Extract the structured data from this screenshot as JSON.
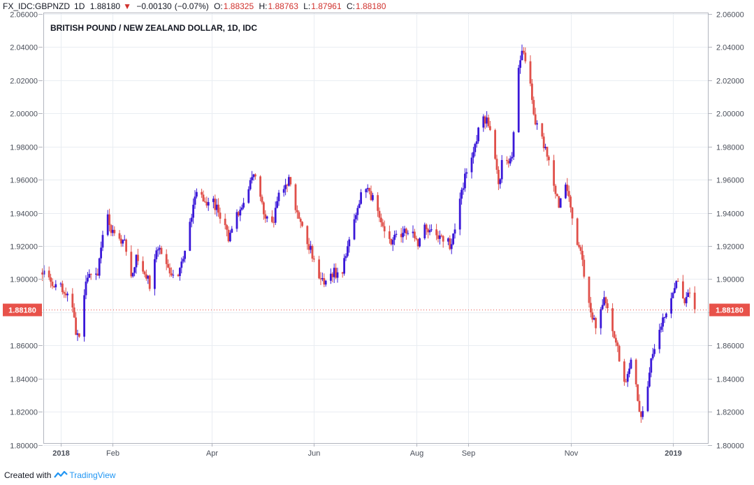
{
  "header": {
    "symbol": "FX_IDC:GBPNZD",
    "timeframe": "1D",
    "last": "1.88180",
    "change": "−0.00130",
    "change_pct": "(−0.07%)",
    "o_label": "O:",
    "o_value": "1.88325",
    "h_label": "H:",
    "h_value": "1.88763",
    "l_label": "L:",
    "l_value": "1.87961",
    "c_label": "C:",
    "c_value": "1.88180"
  },
  "footer": {
    "created_with": "Created with",
    "brand": "TradingView"
  },
  "colors": {
    "up": "#3a18d8",
    "down": "#e0504a",
    "grid": "#e9edf2",
    "price_tag": "#e8524a"
  },
  "chart_data": {
    "type": "candlestick",
    "title": "BRITISH POUND / NEW ZEALAND DOLLAR, 1D, IDC",
    "ylim": [
      1.8,
      2.06
    ],
    "y_ticks": [
      1.8,
      1.82,
      1.84,
      1.86,
      1.88,
      1.9,
      1.92,
      1.94,
      1.96,
      1.98,
      2.0,
      2.02,
      2.04,
      2.06
    ],
    "y_tick_labels": [
      "1.80000",
      "1.82000",
      "1.84000",
      "1.86000",
      "1.88000",
      "1.90000",
      "1.92000",
      "1.94000",
      "1.96000",
      "1.98000",
      "2.00000",
      "2.02000",
      "2.04000",
      "2.06000"
    ],
    "x_tick_labels": [
      {
        "label": "2018",
        "day": 0,
        "bold": true
      },
      {
        "label": "Feb",
        "day": 31
      },
      {
        "label": "Apr",
        "day": 90
      },
      {
        "label": "Jun",
        "day": 151
      },
      {
        "label": "Aug",
        "day": 212
      },
      {
        "label": "Sep",
        "day": 243
      },
      {
        "label": "Nov",
        "day": 304
      },
      {
        "label": "2019",
        "day": 365,
        "bold": true
      }
    ],
    "last_price_label": "1.88180",
    "last_price": 1.8818,
    "grid": true,
    "path": [
      [
        -11,
        1.904
      ],
      [
        -3,
        1.897
      ],
      [
        5,
        1.891
      ],
      [
        9,
        1.869
      ],
      [
        12,
        1.864
      ],
      [
        15,
        1.9
      ],
      [
        22,
        1.905
      ],
      [
        27,
        1.94
      ],
      [
        30,
        1.93
      ],
      [
        34,
        1.925
      ],
      [
        38,
        1.922
      ],
      [
        41,
        1.9
      ],
      [
        45,
        1.912
      ],
      [
        50,
        1.905
      ],
      [
        53,
        1.897
      ],
      [
        58,
        1.92
      ],
      [
        65,
        1.905
      ],
      [
        70,
        1.902
      ],
      [
        73,
        1.912
      ],
      [
        77,
        1.932
      ],
      [
        81,
        1.955
      ],
      [
        86,
        1.945
      ],
      [
        91,
        1.947
      ],
      [
        96,
        1.935
      ],
      [
        100,
        1.925
      ],
      [
        105,
        1.94
      ],
      [
        109,
        1.945
      ],
      [
        114,
        1.962
      ],
      [
        118,
        1.957
      ],
      [
        121,
        1.94
      ],
      [
        126,
        1.932
      ],
      [
        131,
        1.955
      ],
      [
        136,
        1.96
      ],
      [
        140,
        1.94
      ],
      [
        145,
        1.928
      ],
      [
        150,
        1.915
      ],
      [
        154,
        1.9
      ],
      [
        158,
        1.898
      ],
      [
        163,
        1.905
      ],
      [
        167,
        1.9
      ],
      [
        172,
        1.925
      ],
      [
        177,
        1.945
      ],
      [
        181,
        1.955
      ],
      [
        186,
        1.948
      ],
      [
        191,
        1.935
      ],
      [
        195,
        1.922
      ],
      [
        200,
        1.925
      ],
      [
        205,
        1.93
      ],
      [
        209,
        1.928
      ],
      [
        213,
        1.92
      ],
      [
        216,
        1.935
      ],
      [
        220,
        1.93
      ],
      [
        224,
        1.924
      ],
      [
        229,
        1.924
      ],
      [
        233,
        1.92
      ],
      [
        237,
        1.945
      ],
      [
        241,
        1.962
      ],
      [
        246,
        1.975
      ],
      [
        250,
        1.993
      ],
      [
        254,
        1.998
      ],
      [
        258,
        1.982
      ],
      [
        261,
        1.955
      ],
      [
        264,
        1.978
      ],
      [
        267,
        1.968
      ],
      [
        269,
        1.975
      ],
      [
        271,
        2.005
      ],
      [
        273,
        2.03
      ],
      [
        275,
        2.038
      ],
      [
        277,
        2.032
      ],
      [
        280,
        2.018
      ],
      [
        282,
        1.998
      ],
      [
        287,
        1.985
      ],
      [
        291,
        1.97
      ],
      [
        294,
        1.958
      ],
      [
        297,
        1.942
      ],
      [
        300,
        1.96
      ],
      [
        303,
        1.95
      ],
      [
        306,
        1.93
      ],
      [
        310,
        1.915
      ],
      [
        313,
        1.898
      ],
      [
        316,
        1.88
      ],
      [
        320,
        1.868
      ],
      [
        324,
        1.89
      ],
      [
        328,
        1.875
      ],
      [
        332,
        1.858
      ],
      [
        336,
        1.838
      ],
      [
        340,
        1.85
      ],
      [
        342,
        1.842
      ],
      [
        345,
        1.82
      ],
      [
        348,
        1.818
      ],
      [
        352,
        1.85
      ],
      [
        356,
        1.862
      ],
      [
        359,
        1.876
      ],
      [
        363,
        1.885
      ],
      [
        366,
        1.895
      ],
      [
        369,
        1.899
      ],
      [
        372,
        1.884
      ],
      [
        375,
        1.892
      ],
      [
        378,
        1.88
      ]
    ]
  }
}
